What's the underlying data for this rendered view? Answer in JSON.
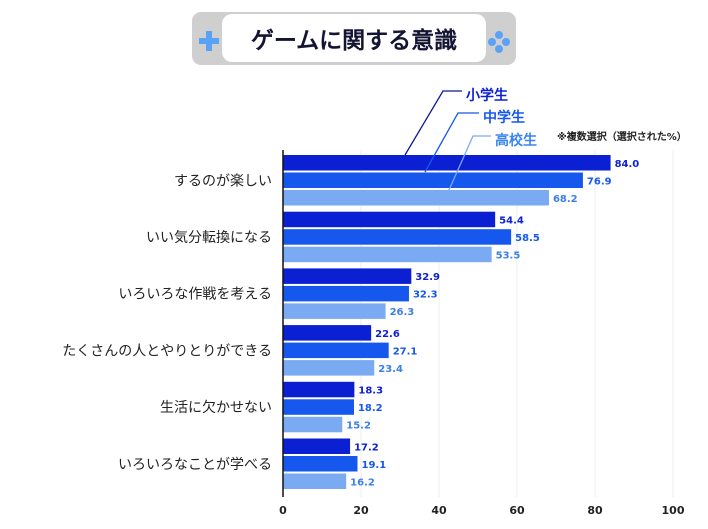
{
  "title": "ゲームに関する意識",
  "note": "※複数選択（選択された%）",
  "chart_data": {
    "type": "bar",
    "orientation": "horizontal",
    "title": "ゲームに関する意識",
    "categories": [
      "するのが楽しい",
      "いい気分転換になる",
      "いろいろな作戦を考える",
      "たくさんの人とやりとりができる",
      "生活に欠かせない",
      "いろいろなことが学べる"
    ],
    "series": [
      {
        "name": "小学生",
        "color": "#0b1fd3",
        "values": [
          84.0,
          54.4,
          32.9,
          22.6,
          18.3,
          17.2
        ]
      },
      {
        "name": "中学生",
        "color": "#1658ee",
        "values": [
          76.9,
          58.5,
          32.3,
          27.1,
          18.2,
          19.1
        ]
      },
      {
        "name": "高校生",
        "color": "#7aaaf2",
        "values": [
          68.2,
          53.5,
          26.3,
          23.4,
          15.2,
          16.2
        ]
      }
    ],
    "xlim": [
      0,
      100
    ],
    "xticks": [
      "0",
      "20",
      "40",
      "60",
      "80",
      "100"
    ],
    "grid": true,
    "legend_placement": "top-right"
  }
}
